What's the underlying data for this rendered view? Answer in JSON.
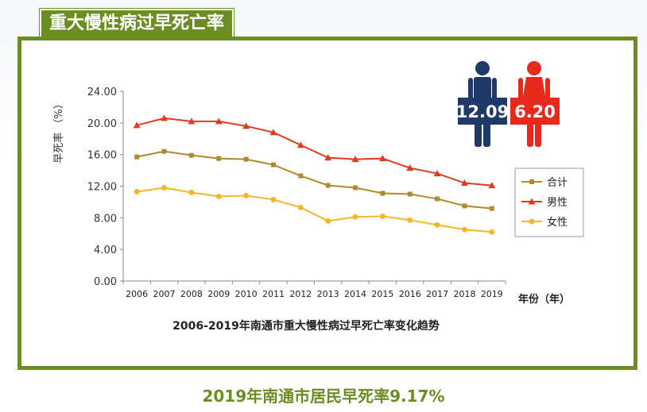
{
  "header": {
    "title": "重大慢性病过早死亡率"
  },
  "footer": {
    "caption": "2019年南通市居民早死率9.17%"
  },
  "figures": {
    "male_value": "12.09",
    "female_value": "6.20",
    "male_color": "#1f3a68",
    "female_color": "#e8291c"
  },
  "chart_data": {
    "type": "line",
    "title": "2006-2019年南通市重大慢性病过早死亡率变化趋势",
    "ylabel": "早死率 （%）",
    "xlabel": "年份（年）",
    "ylim": [
      0,
      24
    ],
    "yticks": [
      "0.00",
      "4.00",
      "8.00",
      "12.00",
      "16.00",
      "20.00",
      "24.00"
    ],
    "categories": [
      "2006",
      "2007",
      "2008",
      "2009",
      "2010",
      "2011",
      "2012",
      "2013",
      "2014",
      "2015",
      "2016",
      "2017",
      "2018",
      "2019"
    ],
    "legend_position": "right",
    "series": [
      {
        "name": "合计",
        "color": "#b08a2e",
        "marker": "square",
        "values": [
          15.7,
          16.4,
          15.9,
          15.5,
          15.4,
          14.7,
          13.3,
          12.1,
          11.8,
          11.1,
          11.0,
          10.4,
          9.5,
          9.17
        ]
      },
      {
        "name": "男性",
        "color": "#e03b1f",
        "marker": "triangle",
        "values": [
          19.7,
          20.6,
          20.2,
          20.2,
          19.6,
          18.8,
          17.2,
          15.6,
          15.4,
          15.5,
          14.3,
          13.6,
          12.4,
          12.09
        ]
      },
      {
        "name": "女性",
        "color": "#f5b728",
        "marker": "circle",
        "values": [
          11.3,
          11.8,
          11.2,
          10.7,
          10.8,
          10.3,
          9.3,
          7.6,
          8.1,
          8.2,
          7.7,
          7.1,
          6.5,
          6.2
        ]
      }
    ]
  }
}
